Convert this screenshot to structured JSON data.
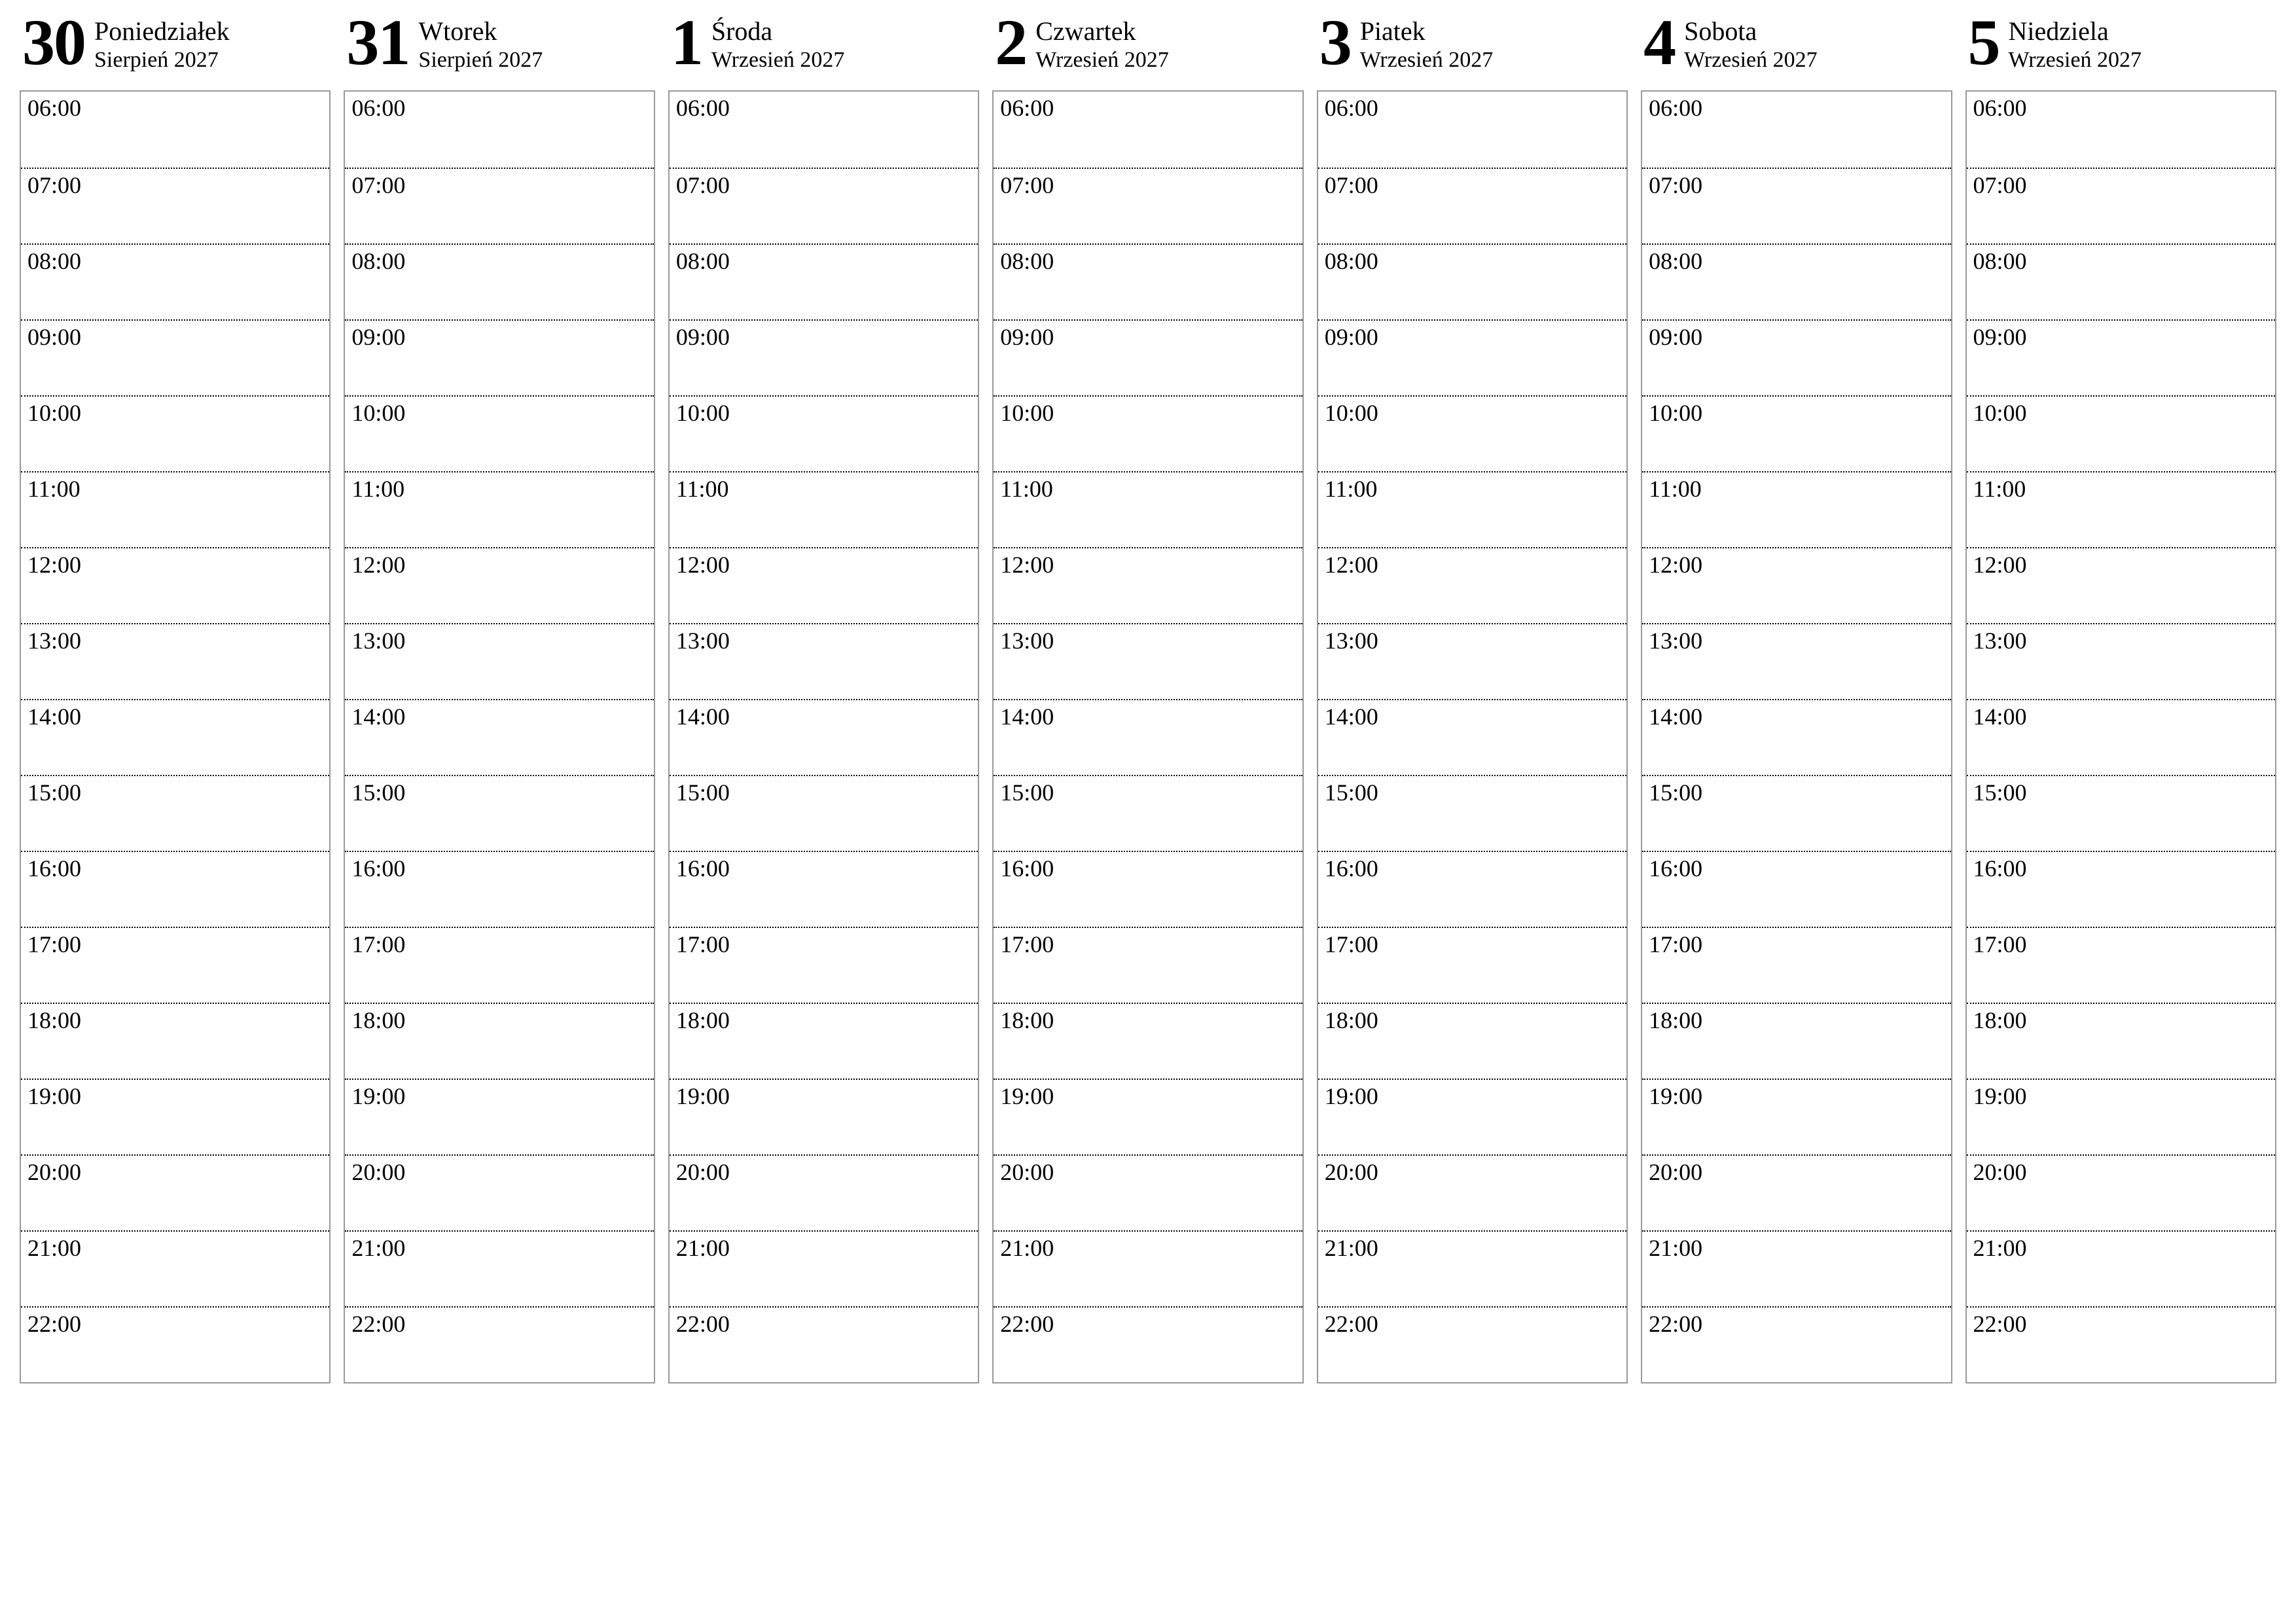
{
  "calendar": {
    "type": "weekly-planner",
    "background_color": "#ffffff",
    "text_color": "#000000",
    "border_color": "#9a9a9a",
    "divider_style": "dotted",
    "font_family": "Times New Roman",
    "day_number_fontsize": 100,
    "day_name_fontsize": 40,
    "month_fontsize": 34,
    "hour_fontsize": 36,
    "hours": [
      "06:00",
      "07:00",
      "08:00",
      "09:00",
      "10:00",
      "11:00",
      "12:00",
      "13:00",
      "14:00",
      "15:00",
      "16:00",
      "17:00",
      "18:00",
      "19:00",
      "20:00",
      "21:00",
      "22:00"
    ],
    "days": [
      {
        "number": "30",
        "name": "Poniedziałek",
        "month": "Sierpień 2027"
      },
      {
        "number": "31",
        "name": "Wtorek",
        "month": "Sierpień 2027"
      },
      {
        "number": "1",
        "name": "Środa",
        "month": "Wrzesień 2027"
      },
      {
        "number": "2",
        "name": "Czwartek",
        "month": "Wrzesień 2027"
      },
      {
        "number": "3",
        "name": "Piatek",
        "month": "Wrzesień 2027"
      },
      {
        "number": "4",
        "name": "Sobota",
        "month": "Wrzesień 2027"
      },
      {
        "number": "5",
        "name": "Niedziela",
        "month": "Wrzesień 2027"
      }
    ]
  }
}
